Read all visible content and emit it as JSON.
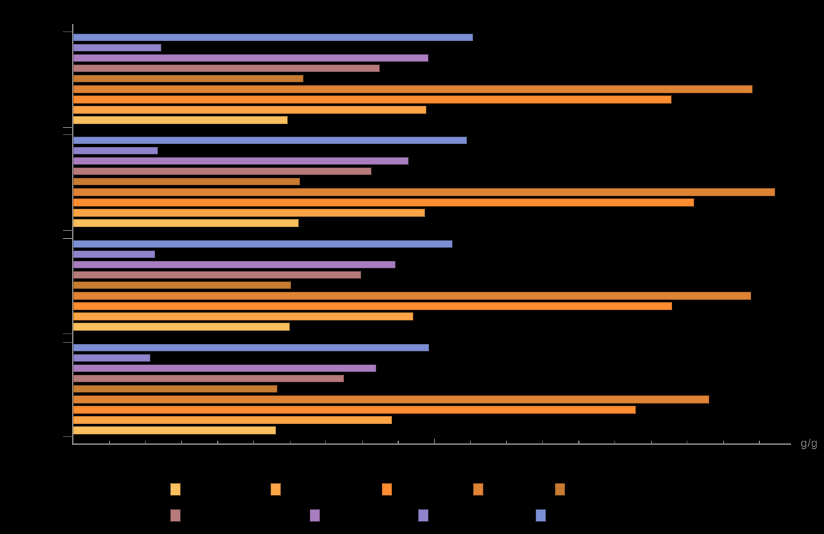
{
  "figure": {
    "background": "#000000",
    "axis_color": "#808080",
    "x_axis_unit_label": "g/g"
  },
  "chart_data": {
    "type": "bar",
    "orientation": "horizontal",
    "title": "",
    "xlabel": "g/g",
    "ylabel": "",
    "x_axis": {
      "min": 0,
      "max": 2.0,
      "minor_tick_step": 0.1,
      "major_tick_step": 1.0,
      "tick_labels_visible": false
    },
    "categories": [
      "",
      "",
      "",
      ""
    ],
    "category_labels_visible": false,
    "note": "4 groups of 9 horizontal bars; axis tick labels, category labels and legend labels are not visible (black-on-black). Values are in axis units where 1.0 = major tick (10 minor ticks).",
    "series": [
      {
        "name": "blue",
        "color": "#7d8fd4",
        "values": [
          1.108,
          1.091,
          1.051,
          0.987
        ]
      },
      {
        "name": "periwinkle",
        "color": "#9184cd",
        "values": [
          0.245,
          0.236,
          0.228,
          0.215
        ]
      },
      {
        "name": "purple",
        "color": "#a97dc0",
        "values": [
          0.985,
          0.93,
          0.894,
          0.84
        ]
      },
      {
        "name": "rose",
        "color": "#b77a7a",
        "values": [
          0.85,
          0.827,
          0.798,
          0.751
        ]
      },
      {
        "name": "brown",
        "color": "#c77c31",
        "values": [
          0.639,
          0.629,
          0.605,
          0.567
        ]
      },
      {
        "name": "dark-orange",
        "color": "#df8334",
        "values": [
          1.882,
          1.945,
          1.878,
          1.762
        ]
      },
      {
        "name": "orange",
        "color": "#fe8c31",
        "values": [
          1.658,
          1.721,
          1.66,
          1.559
        ]
      },
      {
        "name": "light-orange",
        "color": "#fda447",
        "values": [
          0.979,
          0.975,
          0.943,
          0.884
        ]
      },
      {
        "name": "yellow",
        "color": "#fac05e",
        "values": [
          0.595,
          0.626,
          0.601,
          0.563
        ]
      }
    ],
    "legend": {
      "position": "bottom",
      "labels_visible": false,
      "rows": [
        [
          "yellow",
          "light-orange",
          "orange",
          "dark-orange",
          "brown"
        ],
        [
          "rose",
          "purple",
          "periwinkle",
          "blue"
        ]
      ]
    }
  }
}
